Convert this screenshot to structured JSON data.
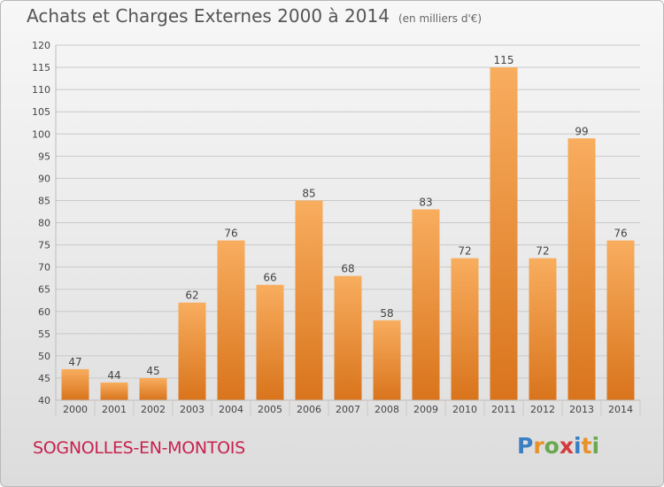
{
  "title": "Achats et Charges Externes 2000 à 2014",
  "unit_note": "(en milliers d'€)",
  "commune": "SOGNOLLES-EN-MONTOIS",
  "brand": {
    "text": "Proxiti",
    "letters": [
      {
        "ch": "P",
        "color": "#3a7fc2"
      },
      {
        "ch": "r",
        "color": "#e8912a"
      },
      {
        "ch": "o",
        "color": "#6aa84f"
      },
      {
        "ch": "x",
        "color": "#d63b3b"
      },
      {
        "ch": "i",
        "color": "#3a7fc2"
      },
      {
        "ch": "t",
        "color": "#e8912a"
      },
      {
        "ch": "i",
        "color": "#6aa84f"
      }
    ]
  },
  "colors": {
    "bar_light": "#f8ad5e",
    "bar_dark": "#d9741c",
    "grid": "#c9c9c9",
    "axis_text": "#444444",
    "title": "#555555",
    "commune": "#c7224f"
  },
  "chart_data": {
    "type": "bar",
    "title": "Achats et Charges Externes 2000 à 2014",
    "xlabel": "",
    "ylabel": "",
    "categories": [
      "2000",
      "2001",
      "2002",
      "2003",
      "2004",
      "2005",
      "2006",
      "2007",
      "2008",
      "2009",
      "2010",
      "2011",
      "2012",
      "2013",
      "2014"
    ],
    "values": [
      47,
      44,
      45,
      62,
      76,
      66,
      85,
      68,
      58,
      83,
      72,
      115,
      72,
      99,
      76
    ],
    "ylim": [
      40,
      120
    ],
    "yticks": [
      40,
      45,
      50,
      55,
      60,
      65,
      70,
      75,
      80,
      85,
      90,
      95,
      100,
      105,
      110,
      115,
      120
    ],
    "grid": true,
    "data_labels": true
  }
}
